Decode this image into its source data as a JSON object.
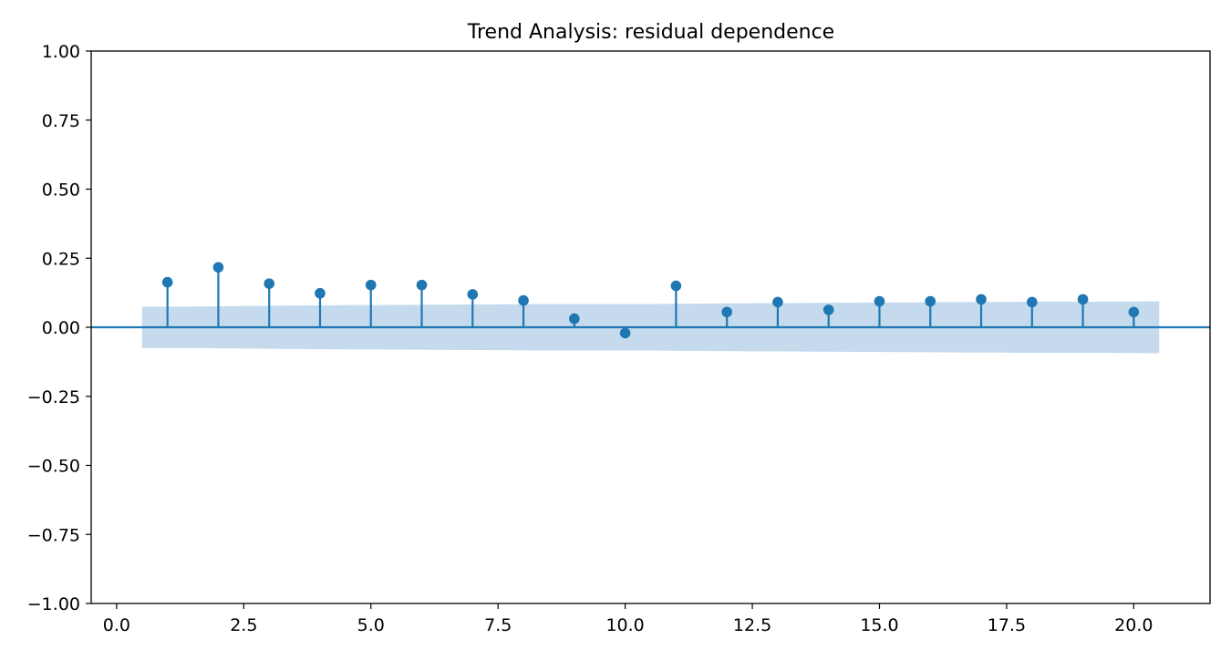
{
  "chart_data": {
    "type": "stem",
    "title": "Trend Analysis: residual dependence",
    "xlabel": "",
    "ylabel": "",
    "xlim": [
      -0.5,
      21.5
    ],
    "ylim": [
      -1.0,
      1.0
    ],
    "x_ticks": [
      0.0,
      2.5,
      5.0,
      7.5,
      10.0,
      12.5,
      15.0,
      17.5,
      20.0
    ],
    "x_tick_labels": [
      "0.0",
      "2.5",
      "5.0",
      "7.5",
      "10.0",
      "12.5",
      "15.0",
      "17.5",
      "20.0"
    ],
    "y_ticks": [
      1.0,
      0.75,
      0.5,
      0.25,
      0.0,
      -0.25,
      -0.5,
      -0.75,
      -1.0
    ],
    "y_tick_labels": [
      "1.00",
      "0.75",
      "0.50",
      "0.25",
      "0.00",
      "−0.25",
      "−0.50",
      "−0.75",
      "−1.00"
    ],
    "grid": false,
    "legend": "none",
    "x": [
      1,
      2,
      3,
      4,
      5,
      6,
      7,
      8,
      9,
      10,
      11,
      12,
      13,
      14,
      15,
      16,
      17,
      18,
      19,
      20
    ],
    "values": [
      0.163,
      0.217,
      0.158,
      0.123,
      0.153,
      0.153,
      0.119,
      0.097,
      0.031,
      -0.021,
      0.15,
      0.055,
      0.091,
      0.063,
      0.094,
      0.094,
      0.101,
      0.091,
      0.101,
      0.055
    ],
    "confidence_band": {
      "x": [
        0.5,
        1.5,
        2.5,
        3.5,
        4.5,
        5.5,
        6.5,
        7.5,
        8.5,
        9.5,
        10.5,
        11.5,
        12.5,
        13.5,
        14.5,
        15.5,
        16.5,
        17.5,
        18.5,
        19.5,
        20.5
      ],
      "upper": [
        0.075,
        0.075,
        0.077,
        0.079,
        0.08,
        0.081,
        0.082,
        0.083,
        0.084,
        0.084,
        0.084,
        0.086,
        0.087,
        0.088,
        0.089,
        0.09,
        0.091,
        0.092,
        0.093,
        0.093,
        0.094
      ],
      "lower": [
        -0.075,
        -0.075,
        -0.077,
        -0.079,
        -0.08,
        -0.081,
        -0.082,
        -0.083,
        -0.084,
        -0.084,
        -0.084,
        -0.086,
        -0.087,
        -0.088,
        -0.089,
        -0.09,
        -0.091,
        -0.092,
        -0.093,
        -0.093,
        -0.094
      ]
    },
    "colors": {
      "stem": "#1f77b4",
      "band": "#c5dbed",
      "axes": "#000000"
    }
  }
}
